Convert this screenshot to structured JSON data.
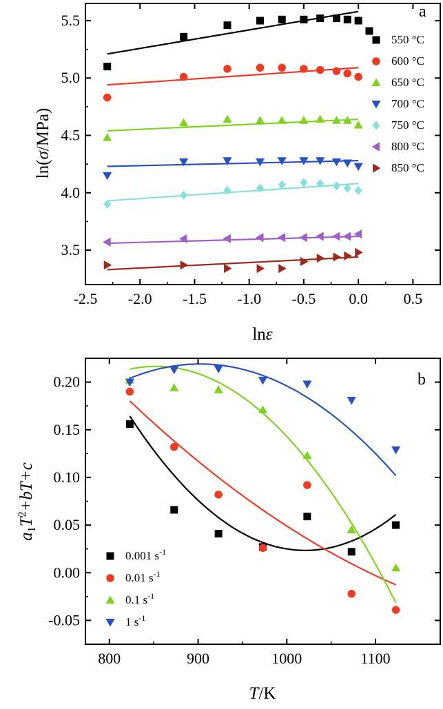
{
  "chart_data": [
    {
      "type": "scatter",
      "panel_label": "a",
      "xlabel_main": "ln",
      "xlabel_sym": "ε",
      "ylabel_main": "ln(",
      "ylabel_sym": "σ",
      "ylabel_tail": "/MPa)",
      "xlim": [
        -2.5,
        0.75
      ],
      "ylim": [
        3.2,
        5.65
      ],
      "xticks": [
        -2.5,
        -2.0,
        -1.5,
        -1.0,
        -0.5,
        0.0,
        0.5
      ],
      "xtick_labels": [
        "-2.5",
        "-2.0",
        "-1.5",
        "-1.0",
        "-0.5",
        "0.0",
        "0.5"
      ],
      "yticks": [
        3.5,
        4.0,
        4.5,
        5.0,
        5.5
      ],
      "ytick_labels": [
        "3.5",
        "4.0",
        "4.5",
        "5.0",
        "5.5"
      ],
      "legend_position": "right",
      "series": [
        {
          "name": "550 °C",
          "marker": "square",
          "color": "#000000",
          "x": [
            -2.3,
            -1.6,
            -1.2,
            -0.9,
            -0.7,
            -0.5,
            -0.35,
            -0.2,
            -0.1,
            0.0,
            0.1
          ],
          "y": [
            5.1,
            5.36,
            5.46,
            5.5,
            5.51,
            5.51,
            5.52,
            5.52,
            5.51,
            5.5,
            5.41
          ],
          "fit": {
            "x": [
              -2.3,
              0.0
            ],
            "y": [
              5.21,
              5.58
            ]
          }
        },
        {
          "name": "600 °C",
          "marker": "circle",
          "color": "#ee3b24",
          "x": [
            -2.3,
            -1.6,
            -1.2,
            -0.9,
            -0.7,
            -0.5,
            -0.35,
            -0.2,
            -0.1,
            0.0
          ],
          "y": [
            4.83,
            5.01,
            5.08,
            5.09,
            5.09,
            5.08,
            5.07,
            5.06,
            5.04,
            5.01
          ],
          "fit": {
            "x": [
              -2.3,
              0.0
            ],
            "y": [
              4.94,
              5.09
            ]
          }
        },
        {
          "name": "650 °C",
          "marker": "triangle-up",
          "color": "#7ed321",
          "x": [
            -2.3,
            -1.6,
            -1.2,
            -0.9,
            -0.7,
            -0.5,
            -0.35,
            -0.2,
            -0.1,
            0.0
          ],
          "y": [
            4.48,
            4.61,
            4.64,
            4.63,
            4.63,
            4.63,
            4.64,
            4.63,
            4.63,
            4.59
          ],
          "fit": {
            "x": [
              -2.3,
              0.0
            ],
            "y": [
              4.54,
              4.64
            ]
          }
        },
        {
          "name": "700 °C",
          "marker": "triangle-down",
          "color": "#2a52be",
          "x": [
            -2.3,
            -1.6,
            -1.2,
            -0.9,
            -0.7,
            -0.5,
            -0.35,
            -0.2,
            -0.1,
            0.0
          ],
          "y": [
            4.15,
            4.27,
            4.28,
            4.27,
            4.28,
            4.28,
            4.28,
            4.27,
            4.26,
            4.23
          ],
          "fit": {
            "x": [
              -2.3,
              0.0
            ],
            "y": [
              4.23,
              4.28
            ]
          }
        },
        {
          "name": "750 °C",
          "marker": "diamond",
          "color": "#88e0d8",
          "x": [
            -2.3,
            -1.6,
            -1.2,
            -0.9,
            -0.7,
            -0.5,
            -0.35,
            -0.2,
            -0.1,
            0.0
          ],
          "y": [
            3.9,
            3.98,
            4.02,
            4.04,
            4.07,
            4.09,
            4.08,
            4.06,
            4.04,
            4.02
          ],
          "fit": {
            "x": [
              -2.3,
              0.0
            ],
            "y": [
              3.93,
              4.08
            ]
          }
        },
        {
          "name": "800 °C",
          "marker": "triangle-left",
          "color": "#a05fc8",
          "x": [
            -2.3,
            -1.6,
            -1.2,
            -0.9,
            -0.7,
            -0.5,
            -0.35,
            -0.2,
            -0.1,
            0.0
          ],
          "y": [
            3.57,
            3.6,
            3.6,
            3.61,
            3.61,
            3.61,
            3.62,
            3.62,
            3.62,
            3.64
          ],
          "fit": {
            "x": [
              -2.3,
              0.0
            ],
            "y": [
              3.56,
              3.62
            ]
          }
        },
        {
          "name": "850 °C",
          "marker": "triangle-right",
          "color": "#9c2a1e",
          "x": [
            -2.3,
            -1.6,
            -1.2,
            -0.9,
            -0.7,
            -0.5,
            -0.35,
            -0.2,
            -0.1,
            0.0
          ],
          "y": [
            3.37,
            3.37,
            3.34,
            3.34,
            3.34,
            3.4,
            3.43,
            3.44,
            3.45,
            3.48
          ],
          "fit": {
            "x": [
              -2.3,
              0.0
            ],
            "y": [
              3.33,
              3.44
            ]
          }
        }
      ]
    },
    {
      "type": "scatter",
      "panel_label": "b",
      "xlabel_sym": "T",
      "xlabel_tail": "/K",
      "ylabel_a": "a",
      "ylabel_sub": "1",
      "ylabel_T1": "T",
      "ylabel_sup": "2",
      "ylabel_plus_b": "+b",
      "ylabel_T2": "T",
      "ylabel_c": "+c",
      "xlim": [
        773,
        1173
      ],
      "ylim": [
        -0.075,
        0.225
      ],
      "xticks": [
        800,
        900,
        1000,
        1100
      ],
      "xtick_labels": [
        "800",
        "900",
        "1000",
        "1100"
      ],
      "yticks": [
        -0.05,
        0.0,
        0.05,
        0.1,
        0.15,
        0.2
      ],
      "ytick_labels": [
        "-0.05",
        "0.00",
        "0.05",
        "0.10",
        "0.15",
        "0.20"
      ],
      "legend_position": "bottom-left",
      "series": [
        {
          "name": "0.001 s",
          "unit_sup": "-1",
          "marker": "square",
          "color": "#000000",
          "x": [
            823,
            873,
            923,
            973,
            1023,
            1073,
            1123
          ],
          "y": [
            0.156,
            0.066,
            0.041,
            0.027,
            0.059,
            0.022,
            0.05
          ],
          "fit_quadratic": [
            3.6e-06,
            -0.00735,
            3.775
          ]
        },
        {
          "name": "0.01 s",
          "unit_sup": "-1",
          "marker": "circle",
          "color": "#ee3b24",
          "x": [
            823,
            873,
            923,
            973,
            1023,
            1073,
            1123
          ],
          "y": [
            0.19,
            0.132,
            0.082,
            0.026,
            0.092,
            -0.022,
            -0.039
          ],
          "fit_quadratic": [
            8e-07,
            -0.0022,
            1.449
          ]
        },
        {
          "name": "0.1 s",
          "unit_sup": "-1",
          "marker": "triangle-up",
          "color": "#7ed321",
          "x": [
            823,
            873,
            923,
            973,
            1023,
            1073,
            1123
          ],
          "y": [
            0.202,
            0.194,
            0.192,
            0.171,
            0.123,
            0.045,
            0.005
          ],
          "fit_quadratic": [
            -3.4e-06,
            0.0058,
            -2.257
          ]
        },
        {
          "name": "1 s",
          "unit_sup": "-1",
          "marker": "triangle-down",
          "color": "#2a52be",
          "x": [
            823,
            873,
            923,
            973,
            1023,
            1073,
            1123
          ],
          "y": [
            0.2,
            0.213,
            0.214,
            0.202,
            0.198,
            0.181,
            0.129
          ],
          "fit_quadratic": [
            -2.4e-06,
            0.00433,
            -1.734
          ]
        }
      ]
    }
  ]
}
